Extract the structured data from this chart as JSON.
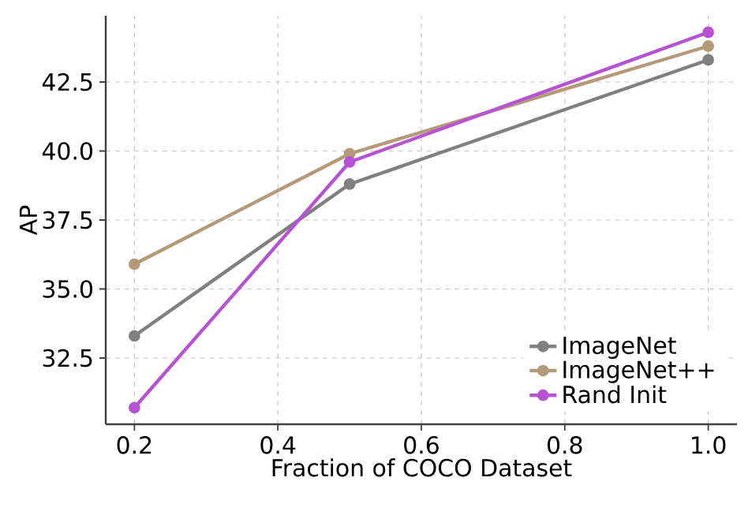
{
  "chart_data": {
    "type": "line",
    "xlabel": "Fraction of COCO Dataset",
    "ylabel": "AP",
    "x": [
      0.2,
      0.5,
      1.0
    ],
    "series": [
      {
        "name": "ImageNet",
        "color": "#808080",
        "values": [
          33.3,
          38.8,
          43.3
        ]
      },
      {
        "name": "ImageNet++",
        "color": "#b59a7a",
        "values": [
          35.9,
          39.9,
          43.8
        ]
      },
      {
        "name": "Rand Init",
        "color": "#b653d3",
        "values": [
          30.7,
          39.6,
          44.3
        ]
      }
    ],
    "xlim": [
      0.16,
      1.04
    ],
    "ylim": [
      30.1,
      44.9
    ],
    "xticks": [
      {
        "value": 0.2,
        "label": "0.2"
      },
      {
        "value": 0.4,
        "label": "0.4"
      },
      {
        "value": 0.6,
        "label": "0.6"
      },
      {
        "value": 0.8,
        "label": "0.8"
      },
      {
        "value": 1.0,
        "label": "1.0"
      }
    ],
    "yticks": [
      {
        "value": 32.5,
        "label": "32.5"
      },
      {
        "value": 35.0,
        "label": "35.0"
      },
      {
        "value": 37.5,
        "label": "37.5"
      },
      {
        "value": 40.0,
        "label": "40.0"
      },
      {
        "value": 42.5,
        "label": "42.5"
      }
    ],
    "grid": true,
    "legend": "bottom right",
    "marker": "circle",
    "line_style": "solid"
  }
}
